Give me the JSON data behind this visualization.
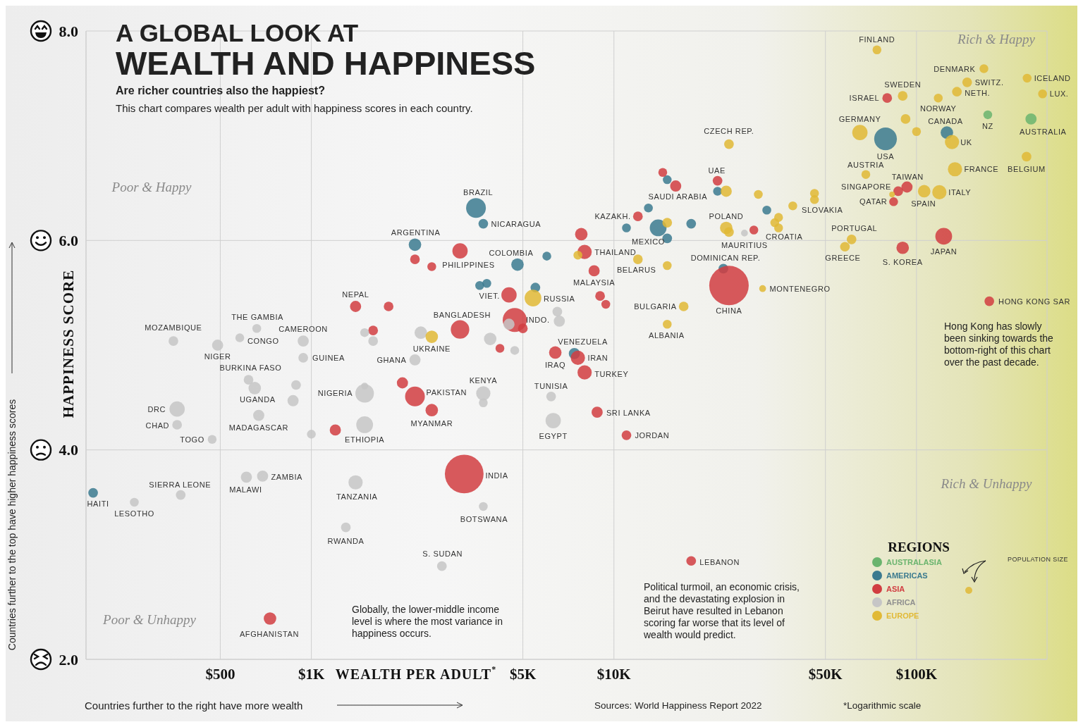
{
  "chart_data": {
    "type": "bubble",
    "title": "A GLOBAL LOOK AT\nWEALTH AND HAPPINESS",
    "subtitle": "Are richer countries also the happiest?",
    "xlabel": "WEALTH PER ADULT$^{*}$",
    "ylabel": "HAPPINESS SCORE",
    "legend_title": "REGIONS",
    "legend": "bottom right",
    "log": "x",
    "grid": true,
    "xlim": [
      180,
      270000
    ],
    "ylim": [
      2,
      8
    ],
    "xticks": [
      {
        "value": 500,
        "label": "$500"
      },
      {
        "value": 1000,
        "label": "$1K"
      },
      {
        "value": 5000,
        "label": "$5K"
      },
      {
        "value": 10000,
        "label": "$10K"
      },
      {
        "value": 50000,
        "label": "$50K"
      },
      {
        "value": 100000,
        "label": "$100K"
      }
    ],
    "yticks": [
      {
        "value": 2,
        "label": "2.0"
      },
      {
        "value": 4,
        "label": "4.0"
      },
      {
        "value": 6,
        "label": "6.0"
      },
      {
        "value": 8,
        "label": "8.0"
      }
    ],
    "series": [
      {
        "name": "AUSTRALASIA",
        "color": "#6ab46e",
        "x": [
          172000,
          239000
        ],
        "values": [
          7.2,
          7.16
        ],
        "sizes": [
          0.05,
          0.08
        ]
      },
      {
        "name": "AMERICAS",
        "color": "#3b7a8f",
        "x": [
          79000,
          3500,
          14000,
          4800,
          2200,
          126000,
          3700,
          7400,
          23000,
          190,
          15000,
          13000,
          11000,
          18000,
          15000,
          22000,
          6000,
          3800,
          3600,
          5500,
          32000
        ],
        "values": [
          6.97,
          6.31,
          6.12,
          5.77,
          5.96,
          7.03,
          6.16,
          4.92,
          5.73,
          3.59,
          6.58,
          6.31,
          6.12,
          6.16,
          6.02,
          6.47,
          5.85,
          5.59,
          5.57,
          5.55,
          6.29
        ],
        "sizes": [
          0.33,
          0.25,
          0.18,
          0.1,
          0.1,
          0.1,
          0.06,
          0.08,
          0.06,
          0.06,
          0.05,
          0.05,
          0.05,
          0.06,
          0.06,
          0.05,
          0.05,
          0.05,
          0.05,
          0.06,
          0.05
        ]
      },
      {
        "name": "ASIA",
        "color": "#d13d41",
        "x": [
          24000,
          3200,
          4700,
          2200,
          3100,
          123000,
          3100,
          4500,
          7600,
          8000,
          8000,
          2500,
          90000,
          6400,
          16000,
          8600,
          730,
          1400,
          8800,
          7800,
          12000,
          93000,
          87000,
          80000,
          84000,
          22000,
          11000,
          18000,
          174000,
          14500,
          29000,
          2200,
          2500,
          1800,
          1600,
          5000,
          2000,
          1200,
          4200,
          9000,
          9400
        ],
        "values": [
          5.57,
          3.77,
          5.24,
          4.51,
          5.15,
          6.04,
          5.9,
          5.48,
          4.88,
          4.74,
          5.89,
          4.38,
          5.93,
          4.93,
          6.52,
          5.71,
          2.39,
          5.37,
          4.36,
          6.06,
          6.23,
          6.51,
          6.47,
          7.36,
          6.37,
          6.57,
          4.14,
          2.94,
          5.42,
          6.65,
          6.1,
          5.82,
          5.75,
          5.37,
          5.14,
          5.16,
          4.64,
          4.19,
          4.97,
          5.47,
          5.39
        ],
        "sizes": [
          1,
          0.96,
          0.37,
          0.25,
          0.22,
          0.18,
          0.15,
          0.15,
          0.13,
          0.13,
          0.13,
          0.1,
          0.1,
          0.1,
          0.08,
          0.08,
          0.1,
          0.08,
          0.08,
          0.1,
          0.06,
          0.08,
          0.06,
          0.06,
          0.05,
          0.06,
          0.06,
          0.06,
          0.06,
          0.05,
          0.05,
          0.06,
          0.05,
          0.06,
          0.06,
          0.06,
          0.08,
          0.08,
          0.05,
          0.06,
          0.05
        ]
      },
      {
        "name": "AFRICA",
        "color": "#c6c6c6",
        "x": [
          350,
          490,
          660,
          580,
          940,
          940,
          620,
          650,
          890,
          870,
          360,
          360,
          670,
          470,
          1000,
          1500,
          1500,
          1500,
          1500,
          1600,
          2200,
          2300,
          3900,
          4500,
          4700,
          3700,
          3700,
          6200,
          6300,
          6500,
          6600,
          690,
          610,
          370,
          260,
          1400,
          3700,
          1300,
          2700,
          27000
        ],
        "values": [
          5.04,
          5.0,
          5.16,
          5.07,
          5.04,
          4.88,
          4.67,
          4.59,
          4.62,
          4.47,
          4.39,
          4.24,
          4.33,
          4.1,
          4.15,
          4.54,
          4.61,
          4.24,
          5.12,
          5.04,
          4.86,
          5.12,
          5.06,
          5.2,
          4.95,
          4.54,
          4.45,
          4.51,
          4.28,
          5.32,
          5.23,
          3.75,
          3.74,
          3.57,
          3.5,
          3.69,
          3.46,
          3.26,
          2.89,
          6.07
        ],
        "sizes": [
          0.06,
          0.08,
          0.05,
          0.05,
          0.08,
          0.06,
          0.06,
          0.1,
          0.06,
          0.08,
          0.15,
          0.06,
          0.08,
          0.05,
          0.05,
          0.22,
          0.03,
          0.18,
          0.05,
          0.06,
          0.08,
          0.1,
          0.1,
          0.08,
          0.05,
          0.13,
          0.05,
          0.06,
          0.15,
          0.06,
          0.08,
          0.08,
          0.08,
          0.06,
          0.05,
          0.13,
          0.05,
          0.06,
          0.06,
          0.03
        ]
      },
      {
        "name": "EUROPE",
        "color": "#e1b935",
        "x": [
          74000,
          167000,
          147000,
          232000,
          261000,
          136000,
          90000,
          118000,
          92000,
          65000,
          100000,
          131000,
          134000,
          231000,
          68000,
          106000,
          119000,
          83000,
          24000,
          23500,
          30000,
          46000,
          46000,
          39000,
          35000,
          34000,
          35000,
          23500,
          24000,
          61000,
          58000,
          31000,
          15000,
          12000,
          15000,
          7600,
          5400,
          2500,
          17000,
          15000
        ],
        "values": [
          7.82,
          7.64,
          7.51,
          7.55,
          7.4,
          7.42,
          7.38,
          7.36,
          7.16,
          7.03,
          7.04,
          6.94,
          6.68,
          6.8,
          6.63,
          6.47,
          6.46,
          6.44,
          6.92,
          6.47,
          6.44,
          6.45,
          6.39,
          6.33,
          6.22,
          6.17,
          6.12,
          6.12,
          6.08,
          6.01,
          5.94,
          5.54,
          6.17,
          5.82,
          5.76,
          5.86,
          5.45,
          5.08,
          5.37,
          5.2
        ],
        "sizes": [
          0.05,
          0.05,
          0.06,
          0.05,
          0.05,
          0.06,
          0.06,
          0.05,
          0.06,
          0.15,
          0.05,
          0.13,
          0.13,
          0.06,
          0.05,
          0.1,
          0.13,
          0.02,
          0.06,
          0.08,
          0.05,
          0.05,
          0.05,
          0.05,
          0.05,
          0.05,
          0.05,
          0.1,
          0.06,
          0.06,
          0.06,
          0.03,
          0.06,
          0.06,
          0.05,
          0.05,
          0.18,
          0.1,
          0.06,
          0.05
        ]
      }
    ],
    "annotations": [
      "This chart compares wealth per adult with happiness scores in each country.",
      "Poor & Happy",
      "Rich & Happy",
      "Poor & Unhappy",
      "Rich & Unhappy",
      "Hong Kong has slowly been sinking towards the bottom-right of this chart over the past decade.",
      "Globally, the lower-middle income level is where the most variance in happiness occurs.",
      "Political turmoil, an economic crisis, and the devastating explosion in Beirut have resulted in Lebanon scoring far worse that its level of wealth would predict.",
      "Countries further to the top have higher happiness scores",
      "Countries further to the right have more wealth",
      "Sources: World Happiness Report 2022",
      "*Logarithmic scale",
      "POPULATION SIZE",
      {
        "text": "FINLAND",
        "x": 74000,
        "y": 7.82
      },
      {
        "text": "DENMARK",
        "x": 167000,
        "y": 7.64
      },
      {
        "text": "SWITZ.",
        "x": 147000,
        "y": 7.51
      },
      {
        "text": "ICELAND",
        "x": 232000,
        "y": 7.55
      },
      {
        "text": "LUX.",
        "x": 261000,
        "y": 7.4
      },
      {
        "text": "NETH.",
        "x": 136000,
        "y": 7.42
      },
      {
        "text": "SWEDEN",
        "x": 90000,
        "y": 7.38
      },
      {
        "text": "ISRAEL",
        "x": 80000,
        "y": 7.36
      },
      {
        "text": "NORWAY",
        "x": 118000,
        "y": 7.36
      },
      {
        "text": "GERMANY",
        "x": 65000,
        "y": 7.03
      },
      {
        "text": "CANADA",
        "x": 126000,
        "y": 7.03
      },
      {
        "text": "NZ",
        "x": 172000,
        "y": 7.2
      },
      {
        "text": "AUSTRALIA",
        "x": 239000,
        "y": 7.16
      },
      {
        "text": "USA",
        "x": 79000,
        "y": 6.97
      },
      {
        "text": "UK",
        "x": 131000,
        "y": 6.94
      },
      {
        "text": "CZECH REP.",
        "x": 24000,
        "y": 6.92
      },
      {
        "text": "AUSTRIA",
        "x": 68000,
        "y": 6.63
      },
      {
        "text": "FRANCE",
        "x": 134000,
        "y": 6.68
      },
      {
        "text": "BELGIUM",
        "x": 231000,
        "y": 6.8
      },
      {
        "text": "UAE",
        "x": 22000,
        "y": 6.57
      },
      {
        "text": "TAIWAN",
        "x": 93000,
        "y": 6.51
      },
      {
        "text": "SINGAPORE",
        "x": 87000,
        "y": 6.47
      },
      {
        "text": "ITALY",
        "x": 119000,
        "y": 6.46
      },
      {
        "text": "SAUDI ARABIA",
        "x": 16000,
        "y": 6.52
      },
      {
        "text": "QATAR",
        "x": 84000,
        "y": 6.37
      },
      {
        "text": "SPAIN",
        "x": 106000,
        "y": 6.47
      },
      {
        "text": "SLOVAKIA",
        "x": 46000,
        "y": 6.39
      },
      {
        "text": "KAZAKH.",
        "x": 12000,
        "y": 6.23
      },
      {
        "text": "POLAND",
        "x": 23500,
        "y": 6.12
      },
      {
        "text": "BRAZIL",
        "x": 3500,
        "y": 6.31
      },
      {
        "text": "NICARAGUA",
        "x": 3700,
        "y": 6.16
      },
      {
        "text": "MEXICO",
        "x": 14000,
        "y": 6.12
      },
      {
        "text": "CROATIA",
        "x": 35000,
        "y": 6.12
      },
      {
        "text": "PORTUGAL",
        "x": 61000,
        "y": 6.01
      },
      {
        "text": "ARGENTINA",
        "x": 2200,
        "y": 5.96
      },
      {
        "text": "MAURITIUS",
        "x": 27000,
        "y": 6.07
      },
      {
        "text": "JAPAN",
        "x": 123000,
        "y": 6.04
      },
      {
        "text": "COLOMBIA",
        "x": 4800,
        "y": 5.77
      },
      {
        "text": "THAILAND",
        "x": 8000,
        "y": 5.89
      },
      {
        "text": "S. KOREA",
        "x": 90000,
        "y": 5.93
      },
      {
        "text": "GREECE",
        "x": 58000,
        "y": 5.94
      },
      {
        "text": "DOMINICAN REP.",
        "x": 23000,
        "y": 5.73
      },
      {
        "text": "PHILIPPINES",
        "x": 3100,
        "y": 5.9
      },
      {
        "text": "BELARUS",
        "x": 12000,
        "y": 5.82
      },
      {
        "text": "MALAYSIA",
        "x": 8600,
        "y": 5.71
      },
      {
        "text": "VIET.",
        "x": 4500,
        "y": 5.48
      },
      {
        "text": "RUSSIA",
        "x": 5400,
        "y": 5.45
      },
      {
        "text": "MONTENEGRO",
        "x": 31000,
        "y": 5.54
      },
      {
        "text": "HONG KONG SAR",
        "x": 174000,
        "y": 5.42
      },
      {
        "text": "CHINA",
        "x": 24000,
        "y": 5.57
      },
      {
        "text": "BULGARIA",
        "x": 17000,
        "y": 5.37
      },
      {
        "text": "NEPAL",
        "x": 1400,
        "y": 5.37
      },
      {
        "text": "INDO.",
        "x": 4700,
        "y": 5.24
      },
      {
        "text": "BANGLADESH",
        "x": 3100,
        "y": 5.15
      },
      {
        "text": "THE GAMBIA",
        "x": 660,
        "y": 5.16
      },
      {
        "text": "MOZAMBIQUE",
        "x": 350,
        "y": 5.04
      },
      {
        "text": "CAMEROON",
        "x": 940,
        "y": 5.04
      },
      {
        "text": "ALBANIA",
        "x": 15000,
        "y": 5.2
      },
      {
        "text": "CONGO",
        "x": 580,
        "y": 5.07
      },
      {
        "text": "UKRAINE",
        "x": 2500,
        "y": 5.08
      },
      {
        "text": "VENEZUELA",
        "x": 7400,
        "y": 4.92
      },
      {
        "text": "NIGER",
        "x": 490,
        "y": 5.0
      },
      {
        "text": "GUINEA",
        "x": 940,
        "y": 4.88
      },
      {
        "text": "IRAN",
        "x": 7600,
        "y": 4.88
      },
      {
        "text": "GHANA",
        "x": 2200,
        "y": 4.86
      },
      {
        "text": "IRAQ",
        "x": 6400,
        "y": 4.93
      },
      {
        "text": "BURKINA FASO",
        "x": 620,
        "y": 4.67
      },
      {
        "text": "TURKEY",
        "x": 8000,
        "y": 4.74
      },
      {
        "text": "KENYA",
        "x": 3700,
        "y": 4.54
      },
      {
        "text": "TUNISIA",
        "x": 6200,
        "y": 4.51
      },
      {
        "text": "NIGERIA",
        "x": 1500,
        "y": 4.54
      },
      {
        "text": "PAKISTAN",
        "x": 2200,
        "y": 4.51
      },
      {
        "text": "UGANDA",
        "x": 650,
        "y": 4.59
      },
      {
        "text": "DRC",
        "x": 360,
        "y": 4.39
      },
      {
        "text": "SRI LANKA",
        "x": 8800,
        "y": 4.36
      },
      {
        "text": "CHAD",
        "x": 360,
        "y": 4.24
      },
      {
        "text": "MADAGASCAR",
        "x": 670,
        "y": 4.33
      },
      {
        "text": "MYANMAR",
        "x": 2500,
        "y": 4.38
      },
      {
        "text": "EGYPT",
        "x": 6300,
        "y": 4.28
      },
      {
        "text": "JORDAN",
        "x": 11000,
        "y": 4.14
      },
      {
        "text": "ETHIOPIA",
        "x": 1500,
        "y": 4.24
      },
      {
        "text": "TOGO",
        "x": 470,
        "y": 4.1
      },
      {
        "text": "INDIA",
        "x": 3200,
        "y": 3.77
      },
      {
        "text": "ZAMBIA",
        "x": 690,
        "y": 3.75
      },
      {
        "text": "MALAWI",
        "x": 610,
        "y": 3.74
      },
      {
        "text": "TANZANIA",
        "x": 1400,
        "y": 3.69
      },
      {
        "text": "SIERRA LEONE",
        "x": 370,
        "y": 3.57
      },
      {
        "text": "HAITI",
        "x": 190,
        "y": 3.59
      },
      {
        "text": "LESOTHO",
        "x": 260,
        "y": 3.5
      },
      {
        "text": "BOTSWANA",
        "x": 3700,
        "y": 3.46
      },
      {
        "text": "RWANDA",
        "x": 1300,
        "y": 3.26
      },
      {
        "text": "S. SUDAN",
        "x": 2700,
        "y": 2.89
      },
      {
        "text": "LEBANON",
        "x": 18000,
        "y": 2.94
      },
      {
        "text": "AFGHANISTAN",
        "x": 730,
        "y": 2.39
      }
    ]
  }
}
